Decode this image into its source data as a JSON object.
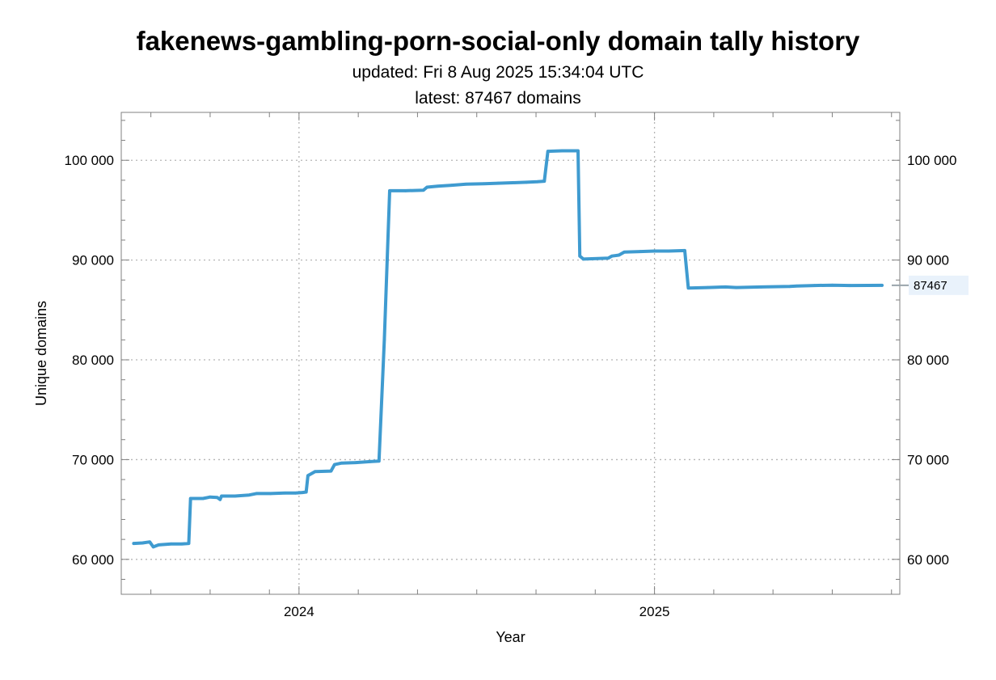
{
  "chart_data": {
    "type": "line",
    "title": "fakenews-gambling-porn-social-only domain tally history",
    "subtitle_updated": "updated: Fri 8 Aug 2025 15:34:04 UTC",
    "subtitle_latest": "latest: 87467 domains",
    "xlabel": "Year",
    "ylabel": "Unique domains",
    "xlim": [
      2023.5,
      2025.69
    ],
    "ylim": [
      56500,
      104800
    ],
    "x_major_ticks": [
      2024,
      2025
    ],
    "x_tick_labels": [
      "2024",
      "2025"
    ],
    "x_minor_ticks": [
      2023.5833,
      2023.75,
      2023.9167,
      2024.1667,
      2024.3333,
      2024.5,
      2024.6667,
      2024.8333,
      2025.1667,
      2025.3333,
      2025.5,
      2025.6667
    ],
    "y_major_ticks": [
      60000,
      70000,
      80000,
      90000,
      100000
    ],
    "y_tick_labels": [
      "60 000",
      "70 000",
      "80 000",
      "90 000",
      "100 000"
    ],
    "grid": true,
    "latest_value_label": "87467",
    "latest_value": 87467,
    "series": [
      {
        "name": "Unique domains",
        "color": "#3f9bd0",
        "points": [
          [
            2023.535,
            61600
          ],
          [
            2023.56,
            61650
          ],
          [
            2023.58,
            61750
          ],
          [
            2023.59,
            61250
          ],
          [
            2023.605,
            61450
          ],
          [
            2023.64,
            61550
          ],
          [
            2023.67,
            61550
          ],
          [
            2023.69,
            61600
          ],
          [
            2023.695,
            66100
          ],
          [
            2023.73,
            66100
          ],
          [
            2023.75,
            66250
          ],
          [
            2023.77,
            66200
          ],
          [
            2023.778,
            66000
          ],
          [
            2023.782,
            66350
          ],
          [
            2023.82,
            66350
          ],
          [
            2023.86,
            66450
          ],
          [
            2023.88,
            66600
          ],
          [
            2023.92,
            66600
          ],
          [
            2023.96,
            66650
          ],
          [
            2023.99,
            66650
          ],
          [
            2024.01,
            66700
          ],
          [
            2024.02,
            66750
          ],
          [
            2024.025,
            68400
          ],
          [
            2024.045,
            68800
          ],
          [
            2024.09,
            68850
          ],
          [
            2024.1,
            69500
          ],
          [
            2024.12,
            69650
          ],
          [
            2024.16,
            69700
          ],
          [
            2024.2,
            69800
          ],
          [
            2024.225,
            69850
          ],
          [
            2024.24,
            82000
          ],
          [
            2024.255,
            96950
          ],
          [
            2024.3,
            96950
          ],
          [
            2024.35,
            97000
          ],
          [
            2024.36,
            97300
          ],
          [
            2024.39,
            97400
          ],
          [
            2024.43,
            97500
          ],
          [
            2024.47,
            97600
          ],
          [
            2024.52,
            97650
          ],
          [
            2024.56,
            97700
          ],
          [
            2024.6,
            97750
          ],
          [
            2024.64,
            97800
          ],
          [
            2024.67,
            97850
          ],
          [
            2024.69,
            97900
          ],
          [
            2024.7,
            100900
          ],
          [
            2024.74,
            100950
          ],
          [
            2024.785,
            100950
          ],
          [
            2024.79,
            90400
          ],
          [
            2024.8,
            90100
          ],
          [
            2024.84,
            90150
          ],
          [
            2024.87,
            90200
          ],
          [
            2024.88,
            90400
          ],
          [
            2024.9,
            90500
          ],
          [
            2024.915,
            90800
          ],
          [
            2024.96,
            90850
          ],
          [
            2025.0,
            90900
          ],
          [
            2025.04,
            90900
          ],
          [
            2025.085,
            90950
          ],
          [
            2025.095,
            87200
          ],
          [
            2025.15,
            87250
          ],
          [
            2025.2,
            87300
          ],
          [
            2025.23,
            87250
          ],
          [
            2025.3,
            87300
          ],
          [
            2025.38,
            87350
          ],
          [
            2025.4,
            87400
          ],
          [
            2025.45,
            87450
          ],
          [
            2025.5,
            87480
          ],
          [
            2025.55,
            87450
          ],
          [
            2025.6,
            87460
          ],
          [
            2025.64,
            87467
          ]
        ]
      }
    ]
  }
}
